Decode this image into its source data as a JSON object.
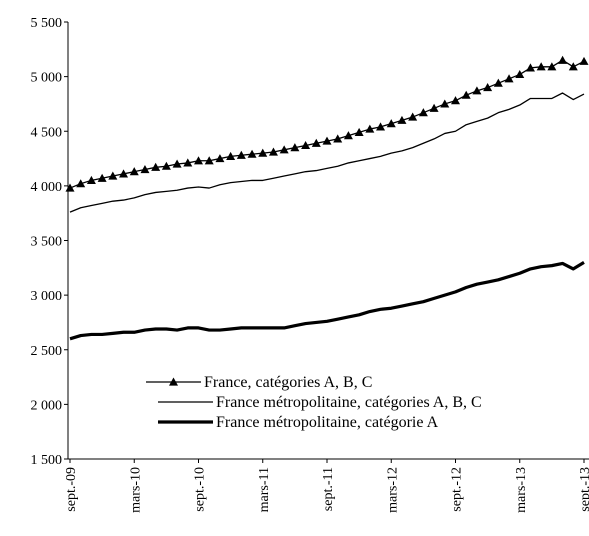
{
  "chart_data": {
    "type": "line",
    "categories": [
      "sept.-09",
      null,
      null,
      null,
      null,
      null,
      "mars-10",
      null,
      null,
      null,
      null,
      null,
      "sept.-10",
      null,
      null,
      null,
      null,
      null,
      "mars-11",
      null,
      null,
      null,
      null,
      null,
      "sept.-11",
      null,
      null,
      null,
      null,
      null,
      "mars-12",
      null,
      null,
      null,
      null,
      null,
      "sept.-12",
      null,
      null,
      null,
      null,
      null,
      "mars-13",
      null,
      null,
      null,
      null,
      null,
      "sept.-13"
    ],
    "series": [
      {
        "name": "France, catégories A, B, C",
        "color": "#000000",
        "line_width": 1.3,
        "marker": "triangle",
        "values": [
          3980,
          4020,
          4050,
          4070,
          4090,
          4110,
          4130,
          4150,
          4170,
          4180,
          4200,
          4210,
          4230,
          4230,
          4250,
          4270,
          4280,
          4290,
          4300,
          4310,
          4330,
          4350,
          4370,
          4390,
          4410,
          4430,
          4460,
          4490,
          4520,
          4540,
          4570,
          4600,
          4630,
          4670,
          4710,
          4750,
          4780,
          4830,
          4870,
          4900,
          4940,
          4980,
          5020,
          5080,
          5090,
          5090,
          5150,
          5090,
          5140
        ]
      },
      {
        "name": "France métropolitaine, catégories A, B, C",
        "color": "#000000",
        "line_width": 1.3,
        "values": [
          3760,
          3800,
          3820,
          3840,
          3860,
          3870,
          3890,
          3920,
          3940,
          3950,
          3960,
          3980,
          3990,
          3980,
          4010,
          4030,
          4040,
          4050,
          4050,
          4070,
          4090,
          4110,
          4130,
          4140,
          4160,
          4180,
          4210,
          4230,
          4250,
          4270,
          4300,
          4320,
          4350,
          4390,
          4430,
          4480,
          4500,
          4560,
          4590,
          4620,
          4670,
          4700,
          4740,
          4800,
          4800,
          4800,
          4850,
          4790,
          4840
        ]
      },
      {
        "name": "France métropolitaine, catégorie A",
        "color": "#000000",
        "line_width": 3.2,
        "values": [
          2600,
          2630,
          2640,
          2640,
          2650,
          2660,
          2660,
          2680,
          2690,
          2690,
          2680,
          2700,
          2700,
          2680,
          2680,
          2690,
          2700,
          2700,
          2700,
          2700,
          2700,
          2720,
          2740,
          2750,
          2760,
          2780,
          2800,
          2820,
          2850,
          2870,
          2880,
          2900,
          2920,
          2940,
          2970,
          3000,
          3030,
          3070,
          3100,
          3120,
          3140,
          3170,
          3200,
          3240,
          3260,
          3270,
          3290,
          3240,
          3300
        ]
      }
    ],
    "ylim": [
      1500,
      5500
    ],
    "yticks": [
      {
        "value": 1500,
        "label": "1 500"
      },
      {
        "value": 2000,
        "label": "2 000"
      },
      {
        "value": 2500,
        "label": "2 500"
      },
      {
        "value": 3000,
        "label": "3 000"
      },
      {
        "value": 3500,
        "label": "3 500"
      },
      {
        "value": 4000,
        "label": "4 000"
      },
      {
        "value": 4500,
        "label": "4 500"
      },
      {
        "value": 5000,
        "label": "5 000"
      },
      {
        "value": 5500,
        "label": "5 500"
      }
    ],
    "grid": false
  }
}
